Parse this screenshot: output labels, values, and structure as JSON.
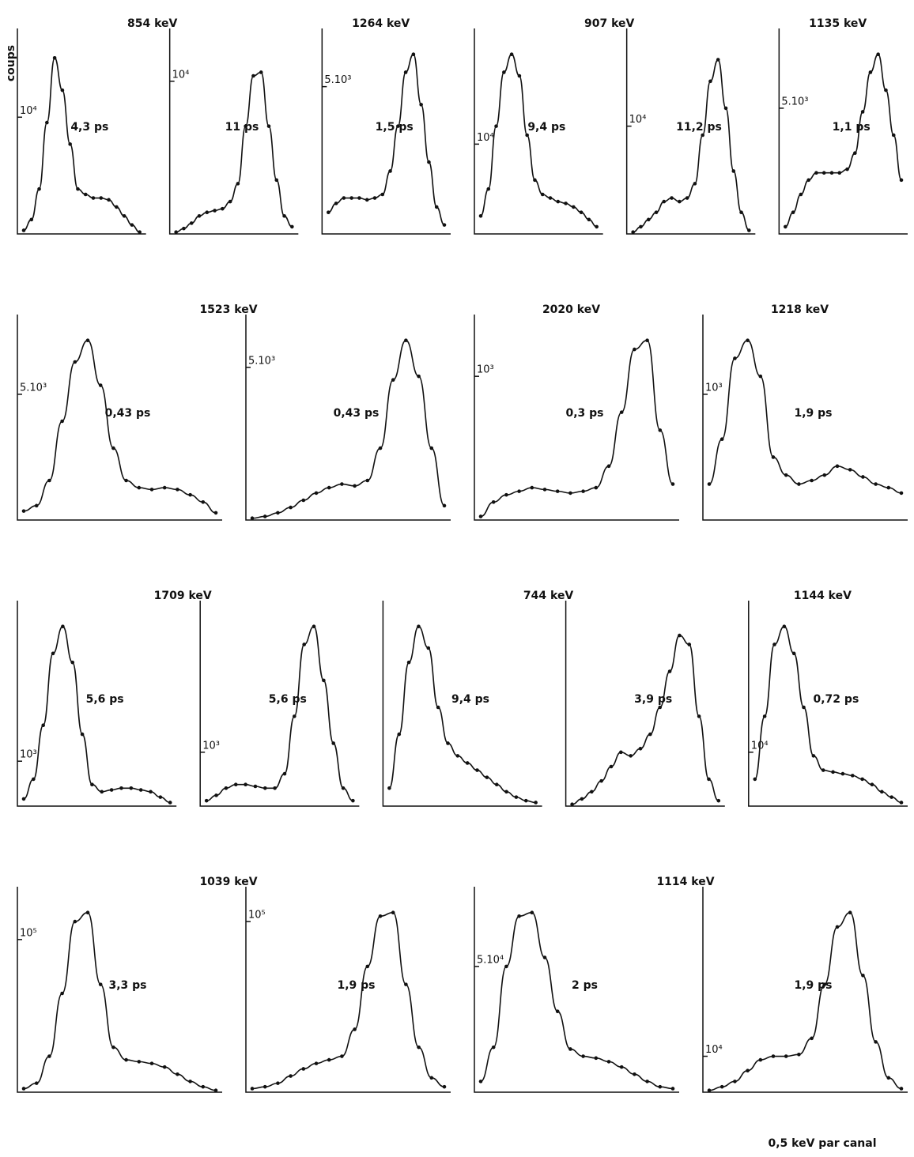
{
  "figure": {
    "y_label": "coups",
    "footer": "0,5 keV par canal",
    "rows": [
      {
        "groups": [
          {
            "title": "854 keV",
            "subplots": [
              {
                "label": "4,3 ps",
                "ylim": [
                  0,
                  110
                ],
                "ytick": {
                  "value": 65,
                  "label": "10⁴"
                },
                "values": [
                  2,
                  8,
                  25,
                  62,
                  98,
                  80,
                  50,
                  25,
                  22,
                  20,
                  20,
                  19,
                  15,
                  10,
                  5,
                  1
                ]
              },
              {
                "label": "11 ps",
                "ylim": [
                  0,
                  110
                ],
                "ytick": {
                  "value": 85,
                  "label": "10⁴"
                },
                "values": [
                  1,
                  3,
                  6,
                  10,
                  12,
                  13,
                  14,
                  18,
                  28,
                  60,
                  88,
                  90,
                  60,
                  30,
                  10,
                  4
                ]
              }
            ]
          },
          {
            "title": "1264 keV",
            "subplots": [
              {
                "label": "1,5 ps",
                "ylim": [
                  0,
                  110
                ],
                "ytick": {
                  "value": 82,
                  "label": "5.10³"
                },
                "values": [
                  12,
                  17,
                  20,
                  20,
                  20,
                  19,
                  20,
                  22,
                  35,
                  60,
                  90,
                  100,
                  72,
                  40,
                  15,
                  5
                ]
              }
            ]
          },
          {
            "title": "907 keV",
            "subplots": [
              {
                "label": "9,4 ps",
                "ylim": [
                  0,
                  110
                ],
                "ytick": {
                  "value": 50,
                  "label": "10⁴"
                },
                "values": [
                  10,
                  25,
                  60,
                  90,
                  100,
                  88,
                  55,
                  30,
                  22,
                  20,
                  18,
                  17,
                  15,
                  12,
                  8,
                  4
                ]
              },
              {
                "label": "11,2 ps",
                "ylim": [
                  0,
                  110
                ],
                "ytick": {
                  "value": 60,
                  "label": "10⁴"
                },
                "values": [
                  1,
                  4,
                  8,
                  12,
                  18,
                  20,
                  18,
                  20,
                  28,
                  55,
                  85,
                  97,
                  70,
                  35,
                  12,
                  2
                ]
              }
            ]
          },
          {
            "title": "1135 keV",
            "subplots": [
              {
                "label": "1,1 ps",
                "ylim": [
                  0,
                  110
                ],
                "ytick": {
                  "value": 70,
                  "label": "5.10³"
                },
                "values": [
                  4,
                  12,
                  22,
                  30,
                  34,
                  34,
                  34,
                  34,
                  36,
                  45,
                  68,
                  90,
                  100,
                  80,
                  55,
                  30
                ]
              }
            ]
          }
        ]
      },
      {
        "groups": [
          {
            "title": "1523 keV",
            "subplots": [
              {
                "label": "0,43 ps",
                "ylim": [
                  0,
                  110
                ],
                "ytick": {
                  "value": 70,
                  "label": "5.10³"
                },
                "values": [
                  5,
                  8,
                  22,
                  55,
                  88,
                  100,
                  75,
                  40,
                  22,
                  18,
                  17,
                  18,
                  17,
                  14,
                  10,
                  4
                ]
              },
              {
                "label": "0,43 ps",
                "ylim": [
                  0,
                  110
                ],
                "ytick": {
                  "value": 85,
                  "label": "5.10³"
                },
                "values": [
                  1,
                  2,
                  4,
                  7,
                  11,
                  15,
                  18,
                  20,
                  19,
                  22,
                  40,
                  78,
                  100,
                  80,
                  40,
                  8
                ]
              }
            ]
          },
          {
            "title": "2020 keV",
            "subplots": [
              {
                "label": "0,3 ps",
                "ylim": [
                  0,
                  110
                ],
                "ytick": {
                  "value": 80,
                  "label": "10³"
                },
                "values": [
                  2,
                  10,
                  14,
                  16,
                  18,
                  17,
                  16,
                  15,
                  16,
                  18,
                  30,
                  60,
                  95,
                  100,
                  50,
                  20
                ]
              }
            ]
          },
          {
            "title": "1218 keV",
            "subplots": [
              {
                "label": "1,9 ps",
                "ylim": [
                  0,
                  110
                ],
                "ytick": {
                  "value": 70,
                  "label": "10³"
                },
                "values": [
                  20,
                  45,
                  90,
                  100,
                  80,
                  35,
                  25,
                  20,
                  22,
                  25,
                  30,
                  28,
                  24,
                  20,
                  18,
                  15
                ]
              }
            ]
          }
        ]
      },
      {
        "groups": [
          {
            "title": "1709 keV",
            "subplots": [
              {
                "label": "5,6 ps",
                "ylim": [
                  0,
                  110
                ],
                "ytick": {
                  "value": 25,
                  "label": "10³"
                },
                "values": [
                  4,
                  15,
                  45,
                  85,
                  100,
                  80,
                  40,
                  12,
                  8,
                  9,
                  10,
                  10,
                  9,
                  8,
                  5,
                  2
                ]
              },
              {
                "label": "5,6 ps",
                "ylim": [
                  0,
                  110
                ],
                "ytick": {
                  "value": 30,
                  "label": "10³"
                },
                "values": [
                  3,
                  6,
                  10,
                  12,
                  12,
                  11,
                  10,
                  10,
                  18,
                  50,
                  90,
                  100,
                  70,
                  35,
                  10,
                  3
                ]
              }
            ]
          },
          {
            "title": "744 keV",
            "subplots": [
              {
                "label": "9,4 ps",
                "ylim": [
                  0,
                  110
                ],
                "values": [
                  10,
                  40,
                  80,
                  100,
                  88,
                  55,
                  35,
                  28,
                  24,
                  20,
                  16,
                  12,
                  8,
                  5,
                  3,
                  2
                ]
              },
              {
                "label": "3,9 ps",
                "ylim": [
                  0,
                  110
                ],
                "values": [
                  1,
                  4,
                  8,
                  14,
                  22,
                  30,
                  28,
                  32,
                  40,
                  55,
                  75,
                  95,
                  90,
                  50,
                  15,
                  3
                ]
              }
            ]
          },
          {
            "title": "1144 keV",
            "subplots": [
              {
                "label": "0,72 ps",
                "ylim": [
                  0,
                  110
                ],
                "ytick": {
                  "value": 30,
                  "label": "10⁴"
                },
                "values": [
                  15,
                  50,
                  90,
                  100,
                  85,
                  55,
                  28,
                  20,
                  19,
                  18,
                  17,
                  15,
                  12,
                  8,
                  5,
                  2
                ]
              }
            ]
          }
        ]
      },
      {
        "groups": [
          {
            "title": "1039 keV",
            "subplots": [
              {
                "label": "3,3 ps",
                "ylim": [
                  0,
                  110
                ],
                "ytick": {
                  "value": 85,
                  "label": "10⁵"
                },
                "values": [
                  2,
                  5,
                  20,
                  55,
                  95,
                  100,
                  60,
                  25,
                  18,
                  17,
                  16,
                  14,
                  10,
                  6,
                  3,
                  1
                ]
              },
              {
                "label": "1,9 ps",
                "ylim": [
                  0,
                  110
                ],
                "ytick": {
                  "value": 95,
                  "label": "10⁵"
                },
                "values": [
                  2,
                  3,
                  5,
                  9,
                  13,
                  16,
                  18,
                  20,
                  35,
                  70,
                  98,
                  100,
                  60,
                  25,
                  8,
                  3
                ]
              }
            ]
          },
          {
            "title": "1114 keV",
            "subplots": [
              {
                "label": "2 ps",
                "ylim": [
                  0,
                  110
                ],
                "ytick": {
                  "value": 70,
                  "label": "5.10⁴"
                },
                "values": [
                  6,
                  25,
                  70,
                  98,
                  100,
                  75,
                  45,
                  24,
                  20,
                  19,
                  17,
                  14,
                  10,
                  6,
                  3,
                  2
                ]
              },
              {
                "label": "1,9 ps",
                "ylim": [
                  0,
                  110
                ],
                "ytick": {
                  "value": 20,
                  "label": "10⁴"
                },
                "values": [
                  1,
                  3,
                  6,
                  12,
                  18,
                  20,
                  20,
                  21,
                  30,
                  60,
                  92,
                  100,
                  65,
                  28,
                  8,
                  2
                ]
              }
            ]
          }
        ]
      }
    ]
  }
}
